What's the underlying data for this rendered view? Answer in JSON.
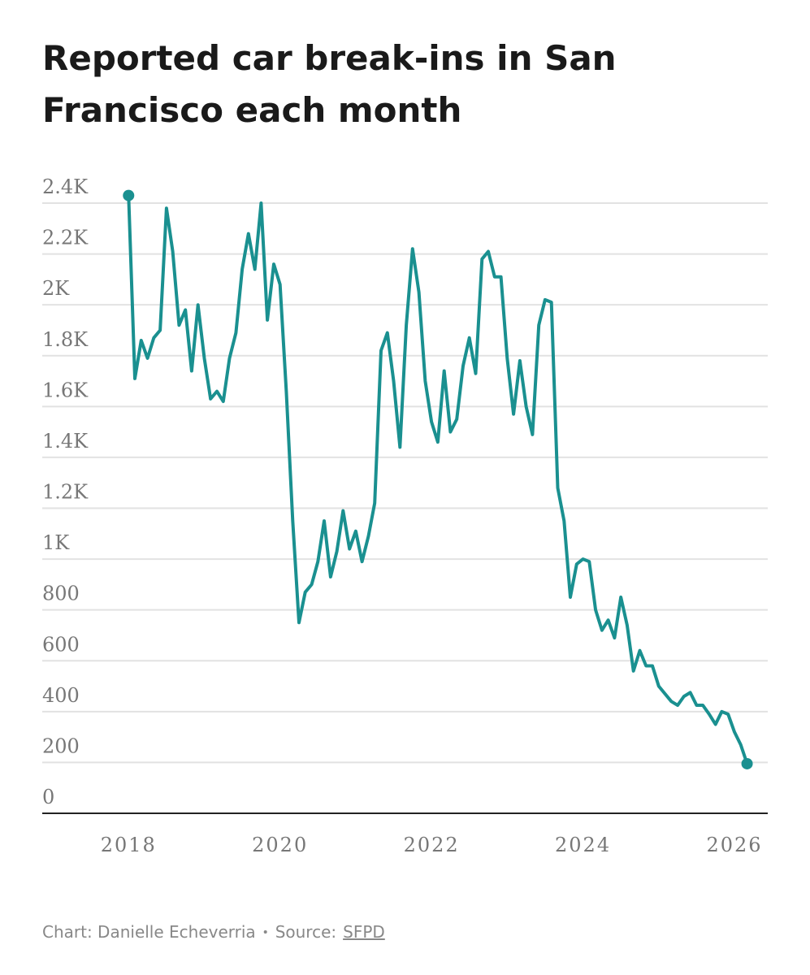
{
  "chart_data": {
    "type": "line",
    "title": "Reported car break-ins in San Francisco each month",
    "credit": "Chart: Danielle Echeverria",
    "source_label": "Source:",
    "source": "SFPD",
    "x": [
      2018,
      2018.083,
      2018.167,
      2018.25,
      2018.333,
      2018.417,
      2018.5,
      2018.583,
      2018.667,
      2018.75,
      2018.833,
      2018.917,
      2019,
      2019.083,
      2019.167,
      2019.25,
      2019.333,
      2019.417,
      2019.5,
      2019.583,
      2019.667,
      2019.75,
      2019.833,
      2019.917,
      2020,
      2020.083,
      2020.167,
      2020.25,
      2020.333,
      2020.417,
      2020.5,
      2020.583,
      2020.667,
      2020.75,
      2020.833,
      2020.917,
      2021,
      2021.083,
      2021.167,
      2021.25,
      2021.333,
      2021.417,
      2021.5,
      2021.583,
      2021.667,
      2021.75,
      2021.833,
      2021.917,
      2022,
      2022.083,
      2022.167,
      2022.25,
      2022.333,
      2022.417,
      2022.5,
      2022.583,
      2022.667,
      2022.75,
      2022.833,
      2022.917,
      2023,
      2023.083,
      2023.167,
      2023.25,
      2023.333,
      2023.417,
      2023.5,
      2023.583,
      2023.667,
      2023.75,
      2023.833,
      2023.917,
      2024,
      2024.083,
      2024.167,
      2024.25,
      2024.333,
      2024.417,
      2024.5,
      2024.583,
      2024.667,
      2024.75,
      2024.833,
      2024.917,
      2025,
      2025.083,
      2025.167,
      2025.25,
      2025.333,
      2025.417,
      2025.5,
      2025.583,
      2025.667,
      2025.75,
      2025.833,
      2025.917,
      2026,
      2026.083,
      2026.167
    ],
    "series": [
      {
        "name": "Reported car break-ins",
        "color": "#1a9090",
        "values": [
          2430,
          1710,
          1860,
          1790,
          1870,
          1900,
          2380,
          2210,
          1920,
          1980,
          1740,
          2000,
          1790,
          1630,
          1660,
          1620,
          1790,
          1890,
          2140,
          2280,
          2140,
          2400,
          1940,
          2160,
          2080,
          1660,
          1150,
          750,
          870,
          900,
          990,
          1150,
          930,
          1030,
          1190,
          1040,
          1110,
          990,
          1090,
          1220,
          1820,
          1890,
          1700,
          1440,
          1920,
          2220,
          2050,
          1700,
          1540,
          1460,
          1740,
          1500,
          1550,
          1760,
          1870,
          1730,
          2180,
          2210,
          2110,
          2110,
          1790,
          1570,
          1780,
          1600,
          1490,
          1920,
          2020,
          2010,
          1280,
          1150,
          850,
          980,
          1000,
          990,
          800,
          720,
          760,
          690,
          850,
          740,
          560,
          640,
          580,
          580,
          500,
          470,
          440,
          425,
          460,
          475,
          425,
          425,
          390,
          350,
          400,
          390,
          320,
          270,
          195
        ]
      }
    ],
    "xlim": [
      2016.86,
      2026.44
    ],
    "xticks": [
      2018,
      2020,
      2022,
      2024,
      2026
    ],
    "ylim": [
      0,
      2400
    ],
    "yticks": [
      0,
      200,
      400,
      600,
      800,
      {
        "value": 1000,
        "label": "1K"
      },
      {
        "value": 1200,
        "label": "1.2K"
      },
      {
        "value": 1400,
        "label": "1.4K"
      },
      {
        "value": 1600,
        "label": "1.6K"
      },
      {
        "value": 1800,
        "label": "1.8K"
      },
      {
        "value": 2000,
        "label": "2K"
      },
      {
        "value": 2200,
        "label": "2.2K"
      },
      {
        "value": 2400,
        "label": "2.4K"
      }
    ],
    "grid": true
  }
}
